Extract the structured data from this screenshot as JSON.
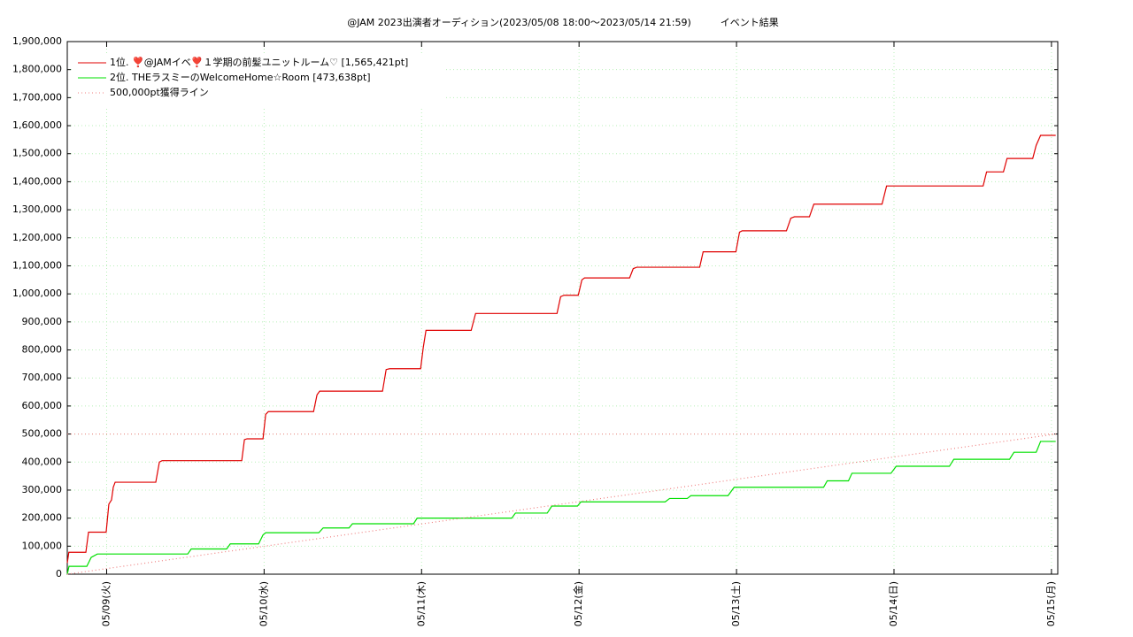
{
  "chart_data": {
    "type": "line",
    "title": "@JAM 2023出演者オーディション(2023/05/08 18:00〜2023/05/14 21:59)　　　イベント結果",
    "xlim": [
      0.75,
      7.04
    ],
    "xticks": [
      {
        "value": 1,
        "label": "05/09(火)"
      },
      {
        "value": 2,
        "label": "05/10(水)"
      },
      {
        "value": 3,
        "label": "05/11(木)"
      },
      {
        "value": 4,
        "label": "05/12(金)"
      },
      {
        "value": 5,
        "label": "05/13(土)"
      },
      {
        "value": 6,
        "label": "05/14(日)"
      },
      {
        "value": 7,
        "label": "05/15(月)"
      }
    ],
    "ylim": [
      0,
      1900000
    ],
    "yticks": [
      0,
      {
        "value": 100000,
        "label": "100,000"
      },
      {
        "value": 200000,
        "label": "200,000"
      },
      {
        "value": 300000,
        "label": "300,000"
      },
      {
        "value": 400000,
        "label": "400,000"
      },
      {
        "value": 500000,
        "label": "500,000"
      },
      {
        "value": 600000,
        "label": "600,000"
      },
      {
        "value": 700000,
        "label": "700,000"
      },
      {
        "value": 800000,
        "label": "800,000"
      },
      {
        "value": 900000,
        "label": "900,000"
      },
      {
        "value": 1000000,
        "label": "1,000,000"
      },
      {
        "value": 1100000,
        "label": "1,100,000"
      },
      {
        "value": 1200000,
        "label": "1,200,000"
      },
      {
        "value": 1300000,
        "label": "1,300,000"
      },
      {
        "value": 1400000,
        "label": "1,400,000"
      },
      {
        "value": 1500000,
        "label": "1,500,000"
      },
      {
        "value": 1600000,
        "label": "1,600,000"
      },
      {
        "value": 1700000,
        "label": "1,700,000"
      },
      {
        "value": 1800000,
        "label": "1,800,000"
      },
      {
        "value": 1900000,
        "label": "1,900,000"
      }
    ],
    "grid": true,
    "legend": "top-left",
    "series": [
      {
        "name": "1位. ❣️@JAMイベ❣️１学期の前髪ユニットルーム♡ [1,565,421pt]",
        "color": "#e00000",
        "style": "solid",
        "x": [
          0.75,
          0.76,
          0.868,
          0.885,
          0.997,
          1.014,
          1.031,
          1.042,
          1.054,
          1.312,
          1.335,
          1.352,
          1.858,
          1.875,
          1.892,
          1.993,
          2.01,
          2.027,
          2.314,
          2.336,
          2.353,
          2.752,
          2.775,
          2.797,
          2.994,
          3.011,
          3.028,
          3.315,
          3.343,
          3.86,
          3.883,
          3.905,
          3.995,
          4.018,
          4.035,
          4.321,
          4.344,
          4.366,
          4.766,
          4.788,
          4.996,
          5.019,
          5.036,
          5.317,
          5.345,
          5.368,
          5.463,
          5.491,
          5.924,
          5.953,
          6.566,
          6.588,
          6.695,
          6.718,
          6.881,
          6.903,
          6.931,
          7.027
        ],
        "values": [
          40000,
          78000,
          78000,
          150000,
          150000,
          250000,
          265000,
          310000,
          328000,
          328000,
          400000,
          405000,
          405000,
          480000,
          483000,
          483000,
          570000,
          580000,
          580000,
          640000,
          653000,
          653000,
          730000,
          733000,
          733000,
          810000,
          870000,
          870000,
          930000,
          930000,
          990000,
          995000,
          995000,
          1050000,
          1057000,
          1057000,
          1090000,
          1095000,
          1095000,
          1150000,
          1150000,
          1220000,
          1225000,
          1225000,
          1270000,
          1275000,
          1275000,
          1320000,
          1320000,
          1385000,
          1385000,
          1435000,
          1435000,
          1483000,
          1483000,
          1530000,
          1565421,
          1565421
        ]
      },
      {
        "name": "2位. THEラスミーのWelcomeHome☆Room [473,638pt]",
        "color": "#00e000",
        "style": "solid",
        "x": [
          0.75,
          0.761,
          0.874,
          0.902,
          0.941,
          1.515,
          1.537,
          1.762,
          1.785,
          1.965,
          1.993,
          2.01,
          2.347,
          2.375,
          2.539,
          2.561,
          2.949,
          2.972,
          3.573,
          3.596,
          3.798,
          3.827,
          3.99,
          4.012,
          4.547,
          4.575,
          4.687,
          4.71,
          4.946,
          4.985,
          5.553,
          5.576,
          5.711,
          5.733,
          5.981,
          6.014,
          6.352,
          6.38,
          6.734,
          6.762,
          6.903,
          6.931,
          7.027
        ],
        "values": [
          0,
          28000,
          28000,
          60000,
          72000,
          72000,
          90000,
          90000,
          108000,
          108000,
          140000,
          148000,
          148000,
          165000,
          165000,
          180000,
          180000,
          200000,
          200000,
          218000,
          218000,
          243000,
          243000,
          258000,
          258000,
          270000,
          270000,
          280000,
          280000,
          310000,
          310000,
          333000,
          333000,
          360000,
          360000,
          385000,
          385000,
          410000,
          410000,
          435000,
          435000,
          473638,
          473638
        ]
      },
      {
        "name": "500,000pt獲得ライン",
        "color": "#f08080",
        "style": "dotted",
        "x": [
          0.75,
          7.027
        ],
        "values": [
          0,
          500000
        ],
        "hline": 500000
      }
    ]
  }
}
